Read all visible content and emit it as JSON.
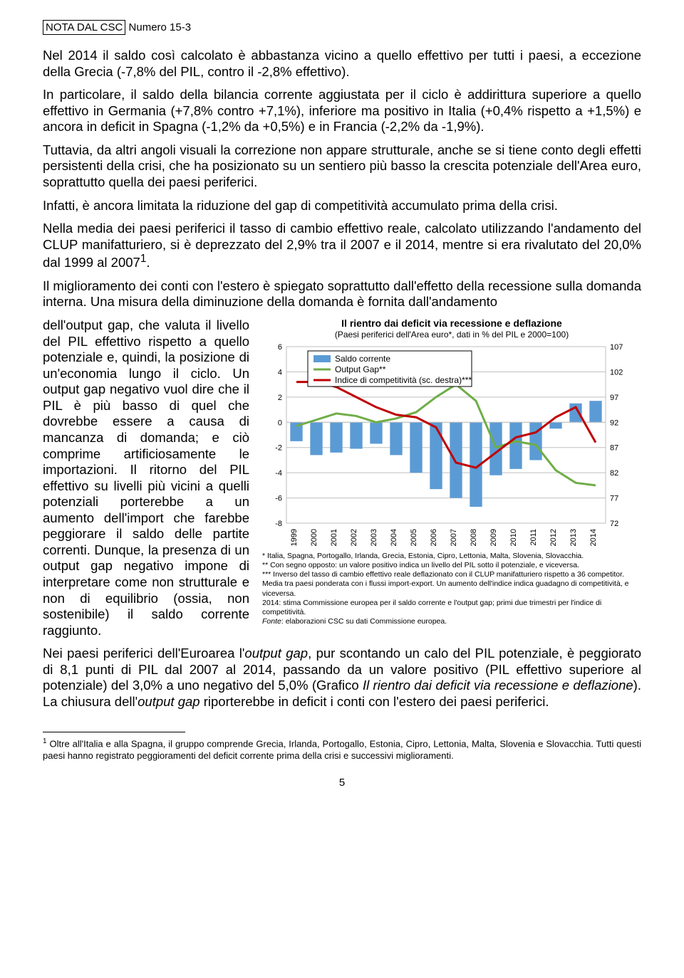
{
  "header": {
    "boxed": "NOTA DAL CSC",
    "rest": " Numero 15-3"
  },
  "paragraphs": {
    "p1": "Nel 2014 il saldo così calcolato è abbastanza vicino a quello effettivo per tutti i paesi, a eccezione della Grecia (-7,8% del PIL, contro il -2,8% effettivo).",
    "p2": "In particolare, il saldo della bilancia corrente aggiustata per il ciclo è addirittura superiore a quello effettivo in Germania (+7,8% contro +7,1%), inferiore ma positivo in Italia (+0,4% rispetto a +1,5%) e ancora in deficit in Spagna (-1,2% da +0,5%) e in Francia (-2,2% da -1,9%).",
    "p3": "Tuttavia, da altri angoli visuali la correzione non appare strutturale, anche se si tiene conto degli effetti persistenti della crisi, che ha posizionato su un sentiero più basso la crescita potenziale dell'Area euro, soprattutto quella dei paesi periferici.",
    "p4": "Infatti, è ancora limitata la riduzione del gap di competitività accumulato prima della crisi.",
    "p5a": "Nella media dei paesi periferici il tasso di cambio effettivo reale, calcolato utilizzando l'andamento del CLUP manifatturiero, si è deprezzato del 2,9% tra il 2007 e il 2014, mentre si era rivalutato del 20,0% dal 1999 al 2007",
    "p5b": ".",
    "p6a": "Il miglioramento dei conti con l'estero è spiegato soprattutto dall'effetto della recessione sulla domanda interna. Una misura della diminuzione della domanda è fornita dall'andamento",
    "p6_col": "dell'output gap, che valuta il livello del PIL effettivo rispetto a quello potenziale e, quindi, la posizione di un'economia lungo il ciclo. Un output gap negativo vuol dire che il PIL è più basso di quel che dovrebbe essere a causa di mancanza di domanda; e ciò comprime artificiosamente le importazioni. Il ritorno del PIL effettivo su livelli più vicini a quelli potenziali porterebbe a un aumento dell'import che farebbe peggiorare il saldo delle partite correnti. Dunque, la presenza di un output gap negativo impone di interpretare come non strutturale e non di equilibrio (ossia, non sostenibile) il saldo corrente raggiunto.",
    "p7": "Nei paesi periferici dell'Euroarea l'output gap, pur scontando un calo del PIL potenziale, è peggiorato di 8,1 punti di PIL dal 2007 al 2014, passando da un valore positivo (PIL effettivo superiore al potenziale) del 3,0% a uno negativo del 5,0% (Grafico Il rientro dai deficit via recessione e deflazione). La chiusura dell'output gap riporterebbe in deficit i conti con l'estero dei paesi periferici."
  },
  "chart": {
    "title": "Il rientro dai deficit via recessione e deflazione",
    "subtitle": "(Paesi periferici dell'Area euro*, dati in % del PIL e 2000=100)",
    "legends": {
      "saldo": "Saldo corrente",
      "gap": "Output Gap**",
      "indice": "Indice di competitività (sc. destra)***"
    },
    "years": [
      "1999",
      "2000",
      "2001",
      "2002",
      "2003",
      "2004",
      "2005",
      "2006",
      "2007",
      "2008",
      "2009",
      "2010",
      "2011",
      "2012",
      "2013",
      "2014"
    ],
    "left_ticks": [
      6,
      4,
      2,
      0,
      -2,
      -4,
      -6,
      -8
    ],
    "right_ticks": [
      107,
      102,
      97,
      92,
      87,
      82,
      77,
      72
    ],
    "left_min": -8,
    "left_max": 6,
    "right_min": 72,
    "right_max": 107,
    "saldo_values": [
      -1.5,
      -2.6,
      -2.4,
      -2.1,
      -1.7,
      -2.6,
      -4.0,
      -5.3,
      -6.0,
      -6.7,
      -4.2,
      -3.7,
      -3.0,
      -0.5,
      1.5,
      1.7
    ],
    "gap_values": [
      -0.3,
      0.2,
      0.7,
      0.5,
      0.0,
      0.3,
      0.8,
      2.0,
      3.0,
      1.7,
      -2.0,
      -1.5,
      -1.8,
      -3.8,
      -4.8,
      -5.0
    ],
    "indice_values": [
      100,
      100,
      99,
      97,
      95,
      93.5,
      93,
      91,
      84,
      83,
      86,
      89,
      90,
      93,
      95,
      88
    ],
    "colors": {
      "bar": "#5b9bd5",
      "gap_line": "#70ad47",
      "indice_line": "#c00000",
      "grid": "#bfbfbf",
      "legend_box": "#000000",
      "axis_text": "#000000"
    },
    "caption_lines": [
      "* Italia, Spagna, Portogallo, Irlanda, Grecia, Estonia, Cipro, Lettonia, Malta, Slovenia, Slovacchia.",
      "** Con segno opposto: un valore positivo indica un livello del PIL sotto il potenziale, e viceversa.",
      "*** Inverso del tasso di cambio effettivo reale deflazionato con il CLUP manifatturiero rispetto a 36 competitor. Media tra paesi ponderata con i flussi import-export. Un aumento dell'indice indica guadagno di competitività, e viceversa.",
      "2014: stima Commissione europea per il saldo corrente e l'output gap; primi due trimestri per l'indice di competitività.",
      "Fonte: elaborazioni CSC su dati Commissione europea."
    ],
    "bar_width_ratio": 0.62,
    "line_width": 3,
    "font_size_axis": 11,
    "font_size_legend": 12
  },
  "footnote": {
    "text": "Oltre all'Italia e alla Spagna, il gruppo comprende Grecia, Irlanda, Portogallo, Estonia, Cipro, Lettonia, Malta, Slovenia e Slovacchia. Tutti questi paesi hanno registrato peggioramenti del deficit corrente prima della crisi e successivi miglioramenti.",
    "marker": "1"
  },
  "page_number": "5"
}
